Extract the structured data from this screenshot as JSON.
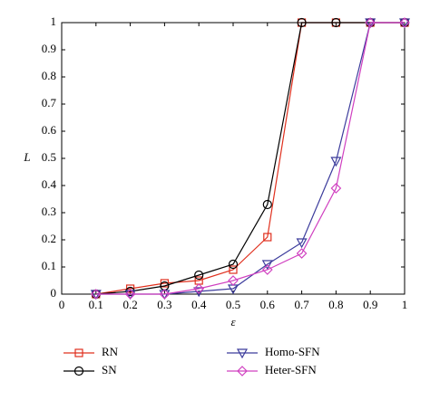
{
  "chart_data": {
    "type": "line",
    "x_label": "ε",
    "y_label": "L",
    "x": [
      0.1,
      0.2,
      0.3,
      0.4,
      0.5,
      0.6,
      0.7,
      0.8,
      0.9,
      1
    ],
    "series": [
      {
        "name": "RN",
        "color": "#e0301e",
        "marker": "square",
        "values": [
          0,
          0.02,
          0.04,
          0.05,
          0.09,
          0.21,
          1,
          1,
          1,
          1
        ]
      },
      {
        "name": "SN",
        "color": "#000000",
        "marker": "circle",
        "values": [
          0,
          0.01,
          0.03,
          0.07,
          0.11,
          0.33,
          1,
          1,
          1,
          1
        ]
      },
      {
        "name": "Homo-SFN",
        "color": "#3c3c9c",
        "marker": "triangle-down",
        "values": [
          0,
          0,
          0,
          0.01,
          0.02,
          0.11,
          0.19,
          0.49,
          1,
          1
        ]
      },
      {
        "name": "Heter-SFN",
        "color": "#d040c0",
        "marker": "diamond",
        "values": [
          0,
          0,
          0,
          0.02,
          0.05,
          0.09,
          0.15,
          0.39,
          1,
          1
        ]
      }
    ],
    "xlim": [
      0,
      1
    ],
    "ylim": [
      0,
      1
    ],
    "xticks": [
      0,
      0.1,
      0.2,
      0.3,
      0.4,
      0.5,
      0.6,
      0.7,
      0.8,
      0.9,
      1
    ],
    "yticks": [
      0,
      0.1,
      0.2,
      0.3,
      0.4,
      0.5,
      0.6,
      0.7,
      0.8,
      0.9,
      1
    ],
    "legend": "below"
  }
}
